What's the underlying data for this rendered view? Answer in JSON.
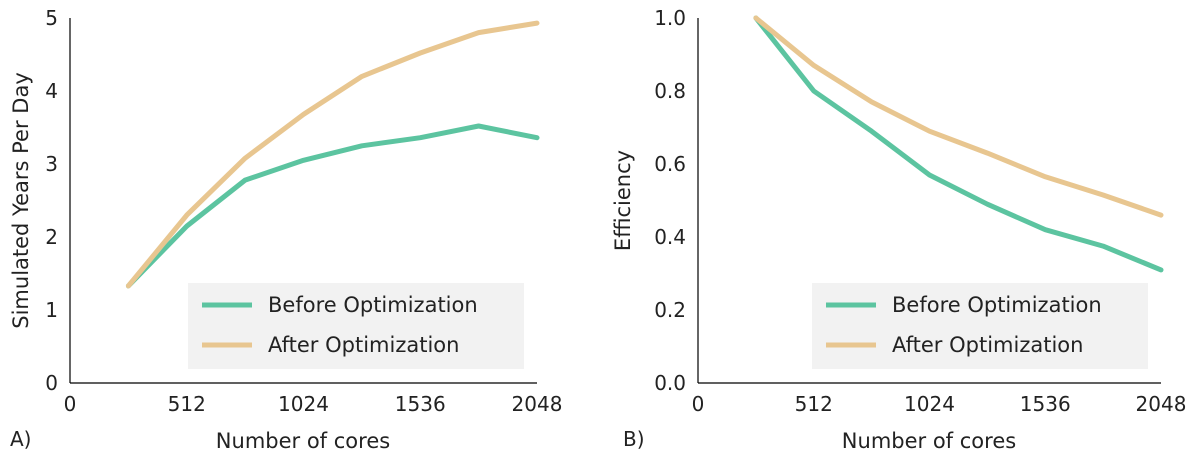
{
  "chart_data": [
    {
      "type": "line",
      "panel_tag": "A)",
      "xlabel": "Number of cores",
      "ylabel": "Simulated Years Per Day",
      "xlim": [
        0,
        2048
      ],
      "ylim": [
        0,
        5
      ],
      "xticks": [
        0,
        512,
        1024,
        1536,
        2048
      ],
      "xtick_labels": [
        "0",
        "512",
        "1024",
        "1536",
        "2048"
      ],
      "yticks": [
        0,
        1,
        2,
        3,
        4,
        5
      ],
      "ytick_labels": [
        "0",
        "1",
        "2",
        "3",
        "4",
        "5"
      ],
      "grid": false,
      "legend_position": "bottom-right",
      "series": [
        {
          "name": "Before Optimization",
          "color": "#5cc4a0",
          "x": [
            256,
            512,
            768,
            1024,
            1280,
            1536,
            1792,
            2048
          ],
          "y": [
            1.33,
            2.15,
            2.78,
            3.05,
            3.25,
            3.36,
            3.52,
            3.36
          ]
        },
        {
          "name": "After Optimization",
          "color": "#e8c690",
          "x": [
            256,
            512,
            768,
            1024,
            1280,
            1536,
            1792,
            2048
          ],
          "y": [
            1.33,
            2.3,
            3.08,
            3.68,
            4.2,
            4.52,
            4.8,
            4.93
          ]
        }
      ]
    },
    {
      "type": "line",
      "panel_tag": "B)",
      "xlabel": "Number of cores",
      "ylabel": "Efficiency",
      "xlim": [
        0,
        2048
      ],
      "ylim": [
        0.0,
        1.0
      ],
      "xticks": [
        0,
        512,
        1024,
        1536,
        2048
      ],
      "xtick_labels": [
        "0",
        "512",
        "1024",
        "1536",
        "2048"
      ],
      "yticks": [
        0.0,
        0.2,
        0.4,
        0.6,
        0.8,
        1.0
      ],
      "ytick_labels": [
        "0.0",
        "0.2",
        "0.4",
        "0.6",
        "0.8",
        "1.0"
      ],
      "grid": false,
      "legend_position": "bottom-right",
      "series": [
        {
          "name": "Before Optimization",
          "color": "#5cc4a0",
          "x": [
            256,
            512,
            768,
            1024,
            1280,
            1536,
            1792,
            2048
          ],
          "y": [
            1.0,
            0.8,
            0.69,
            0.57,
            0.49,
            0.42,
            0.375,
            0.31
          ]
        },
        {
          "name": "After Optimization",
          "color": "#e8c690",
          "x": [
            256,
            512,
            768,
            1024,
            1280,
            1536,
            1792,
            2048
          ],
          "y": [
            1.0,
            0.87,
            0.77,
            0.69,
            0.63,
            0.565,
            0.515,
            0.46
          ]
        }
      ]
    }
  ]
}
